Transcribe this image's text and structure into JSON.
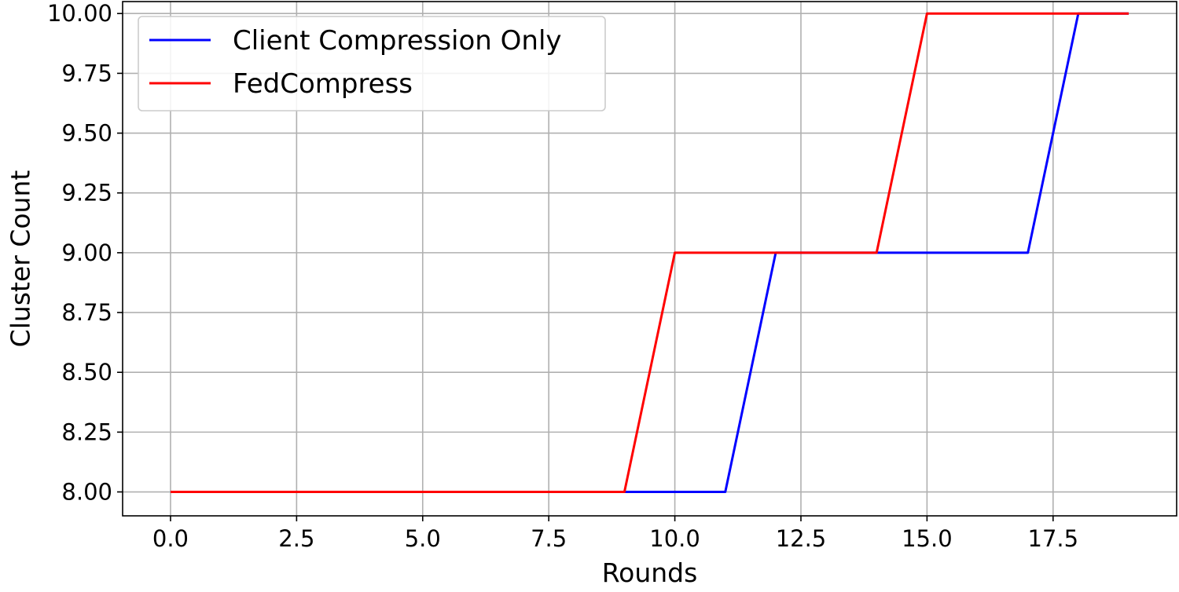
{
  "chart_data": {
    "type": "line",
    "title": "",
    "xlabel": "Rounds",
    "ylabel": "Cluster Count",
    "x": [
      0,
      1,
      2,
      3,
      4,
      5,
      6,
      7,
      8,
      9,
      10,
      11,
      12,
      13,
      14,
      15,
      16,
      17,
      18,
      19
    ],
    "series": [
      {
        "name": "Client Compression Only",
        "color": "#0000ff",
        "values": [
          8,
          8,
          8,
          8,
          8,
          8,
          8,
          8,
          8,
          8,
          8,
          8,
          9,
          9,
          9,
          9,
          9,
          9,
          10,
          10
        ]
      },
      {
        "name": "FedCompress",
        "color": "#ff0000",
        "values": [
          8,
          8,
          8,
          8,
          8,
          8,
          8,
          8,
          8,
          8,
          9,
          9,
          9,
          9,
          9,
          10,
          10,
          10,
          10,
          10
        ]
      }
    ],
    "xlim": [
      -0.95,
      19.95
    ],
    "ylim": [
      7.9,
      10.05
    ],
    "xticks": [
      0.0,
      2.5,
      5.0,
      7.5,
      10.0,
      12.5,
      15.0,
      17.5
    ],
    "xtick_labels": [
      "0.0",
      "2.5",
      "5.0",
      "7.5",
      "10.0",
      "12.5",
      "15.0",
      "17.5"
    ],
    "yticks": [
      8.0,
      8.25,
      8.5,
      8.75,
      9.0,
      9.25,
      9.5,
      9.75,
      10.0
    ],
    "ytick_labels": [
      "8.00",
      "8.25",
      "8.50",
      "8.75",
      "9.00",
      "9.25",
      "9.50",
      "9.75",
      "10.00"
    ],
    "grid": true,
    "legend_position": "top-left"
  }
}
